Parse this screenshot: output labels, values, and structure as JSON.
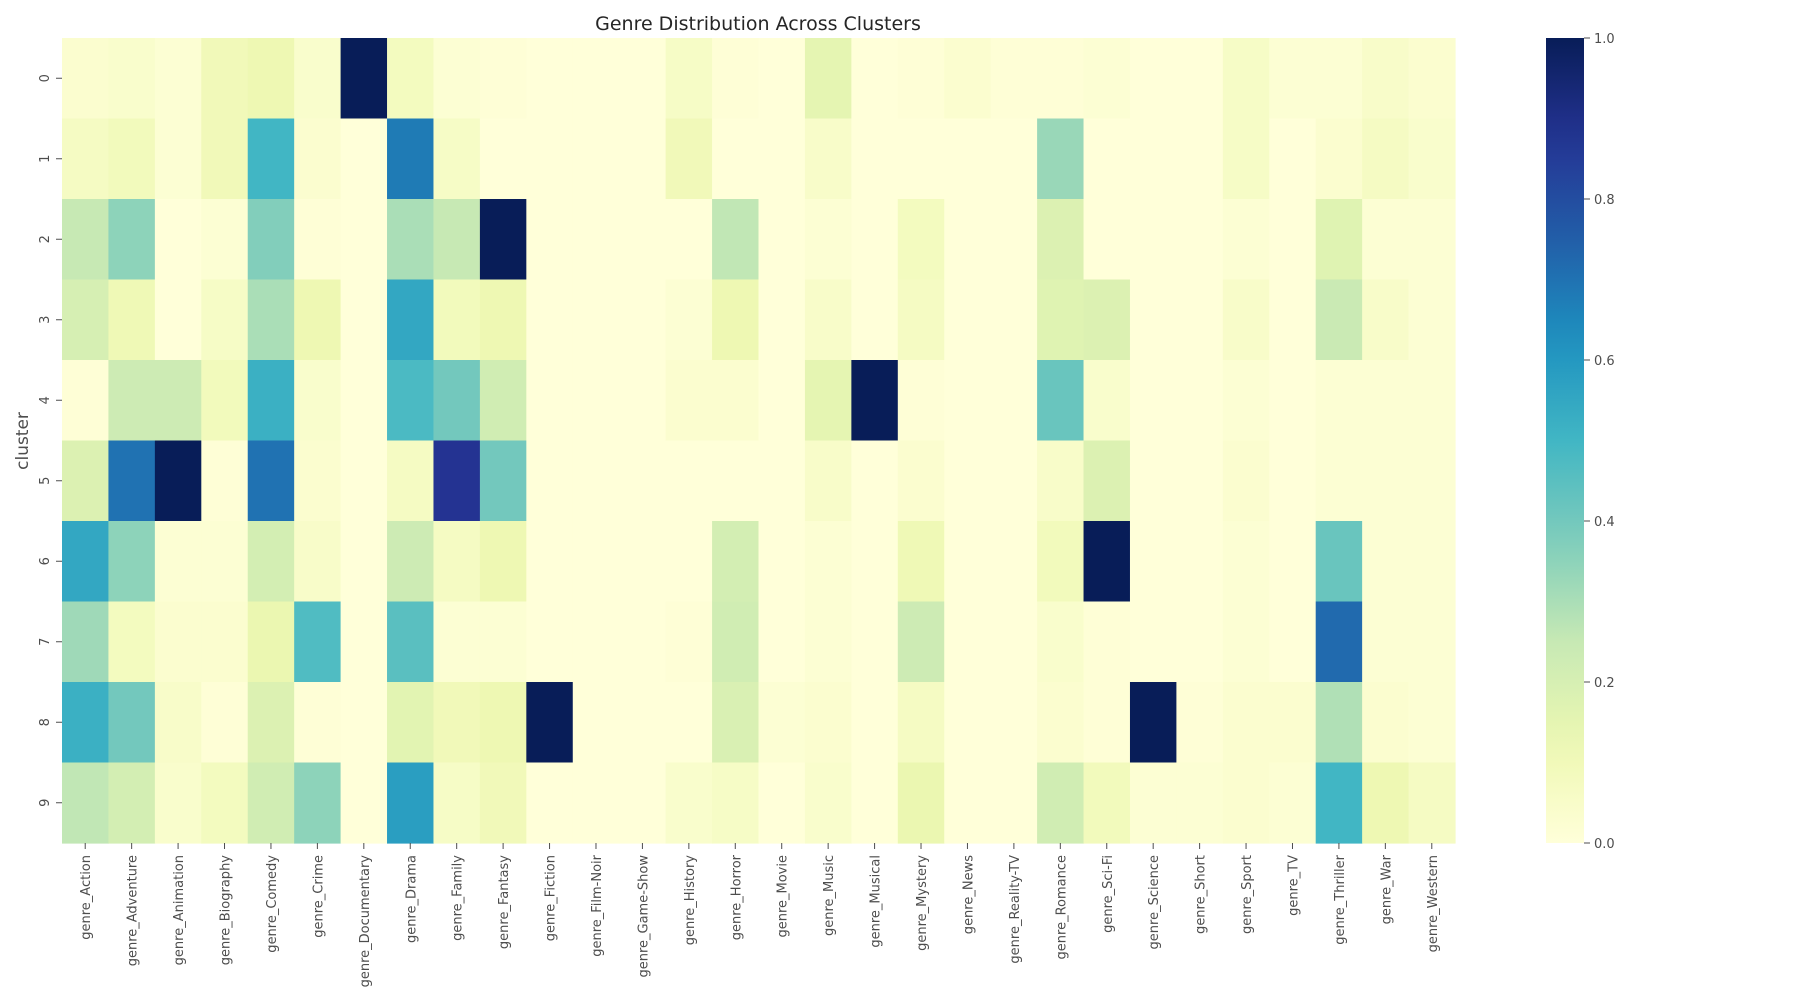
{
  "chart_data": {
    "type": "heatmap",
    "title": "Genre Distribution Across Clusters",
    "xlabel": "",
    "ylabel": "cluster",
    "colorscale": "YlGnBu",
    "vmin": 0,
    "vmax": 1,
    "colorbar_ticks": [
      "0.0",
      "0.2",
      "0.4",
      "0.6",
      "0.8",
      "1.0"
    ],
    "rows": [
      "0",
      "1",
      "2",
      "3",
      "4",
      "5",
      "6",
      "7",
      "8",
      "9"
    ],
    "columns": [
      "genre_Action",
      "genre_Adventure",
      "genre_Animation",
      "genre_Biography",
      "genre_Comedy",
      "genre_Crime",
      "genre_Documentary",
      "genre_Drama",
      "genre_Family",
      "genre_Fantasy",
      "genre_Fiction",
      "genre_Film-Noir",
      "genre_Game-Show",
      "genre_History",
      "genre_Horror",
      "genre_Movie",
      "genre_Music",
      "genre_Musical",
      "genre_Mystery",
      "genre_News",
      "genre_Reality-TV",
      "genre_Romance",
      "genre_Sci-Fi",
      "genre_Science",
      "genre_Short",
      "genre_Sport",
      "genre_TV",
      "genre_Thriller",
      "genre_War",
      "genre_Western"
    ],
    "values": [
      [
        0.03,
        0.04,
        0.02,
        0.1,
        0.12,
        0.04,
        1.0,
        0.08,
        0.02,
        0.01,
        0.0,
        0.0,
        0.0,
        0.06,
        0.01,
        0.0,
        0.15,
        0.0,
        0.01,
        0.03,
        0.01,
        0.01,
        0.02,
        0.0,
        0.0,
        0.06,
        0.02,
        0.02,
        0.05,
        0.03
      ],
      [
        0.07,
        0.09,
        0.02,
        0.1,
        0.5,
        0.03,
        0.0,
        0.68,
        0.06,
        0.0,
        0.0,
        0.0,
        0.0,
        0.1,
        0.0,
        0.0,
        0.05,
        0.0,
        0.0,
        0.0,
        0.0,
        0.33,
        0.0,
        0.0,
        0.0,
        0.06,
        0.0,
        0.03,
        0.07,
        0.04
      ],
      [
        0.25,
        0.35,
        0.0,
        0.02,
        0.37,
        0.01,
        0.0,
        0.3,
        0.25,
        1.0,
        0.0,
        0.0,
        0.0,
        0.0,
        0.26,
        0.0,
        0.02,
        0.0,
        0.08,
        0.0,
        0.0,
        0.18,
        0.0,
        0.0,
        0.0,
        0.02,
        0.0,
        0.17,
        0.02,
        0.02
      ],
      [
        0.2,
        0.11,
        0.0,
        0.06,
        0.3,
        0.12,
        0.0,
        0.55,
        0.09,
        0.12,
        0.0,
        0.0,
        0.0,
        0.02,
        0.12,
        0.0,
        0.05,
        0.0,
        0.07,
        0.0,
        0.0,
        0.17,
        0.18,
        0.0,
        0.0,
        0.05,
        0.0,
        0.24,
        0.05,
        0.02
      ],
      [
        0.01,
        0.23,
        0.23,
        0.09,
        0.52,
        0.04,
        0.0,
        0.48,
        0.4,
        0.22,
        0.0,
        0.0,
        0.0,
        0.03,
        0.03,
        0.0,
        0.15,
        1.0,
        0.01,
        0.0,
        0.0,
        0.42,
        0.04,
        0.0,
        0.0,
        0.02,
        0.0,
        0.02,
        0.02,
        0.02
      ],
      [
        0.18,
        0.7,
        1.0,
        0.01,
        0.7,
        0.03,
        0.0,
        0.07,
        0.88,
        0.4,
        0.0,
        0.0,
        0.0,
        0.0,
        0.0,
        0.0,
        0.05,
        0.0,
        0.03,
        0.0,
        0.0,
        0.05,
        0.18,
        0.0,
        0.0,
        0.03,
        0.0,
        0.02,
        0.02,
        0.02
      ],
      [
        0.55,
        0.35,
        0.02,
        0.02,
        0.21,
        0.05,
        0.0,
        0.23,
        0.07,
        0.12,
        0.0,
        0.0,
        0.0,
        0.0,
        0.21,
        0.0,
        0.02,
        0.0,
        0.11,
        0.0,
        0.0,
        0.09,
        1.0,
        0.0,
        0.0,
        0.02,
        0.0,
        0.42,
        0.02,
        0.02
      ],
      [
        0.32,
        0.08,
        0.03,
        0.03,
        0.13,
        0.47,
        0.0,
        0.45,
        0.02,
        0.02,
        0.0,
        0.0,
        0.0,
        0.01,
        0.22,
        0.0,
        0.02,
        0.0,
        0.23,
        0.0,
        0.0,
        0.04,
        0.01,
        0.0,
        0.0,
        0.02,
        0.0,
        0.72,
        0.02,
        0.02
      ],
      [
        0.52,
        0.4,
        0.05,
        0.01,
        0.18,
        0.01,
        0.0,
        0.16,
        0.1,
        0.12,
        1.0,
        0.0,
        0.0,
        0.0,
        0.19,
        0.02,
        0.03,
        0.0,
        0.07,
        0.0,
        0.0,
        0.03,
        0.01,
        1.0,
        0.01,
        0.03,
        0.03,
        0.29,
        0.03,
        0.02
      ],
      [
        0.26,
        0.21,
        0.04,
        0.08,
        0.22,
        0.35,
        0.0,
        0.58,
        0.06,
        0.1,
        0.0,
        0.0,
        0.0,
        0.04,
        0.06,
        0.0,
        0.04,
        0.0,
        0.13,
        0.0,
        0.0,
        0.22,
        0.09,
        0.02,
        0.02,
        0.03,
        0.02,
        0.5,
        0.12,
        0.07
      ]
    ]
  }
}
